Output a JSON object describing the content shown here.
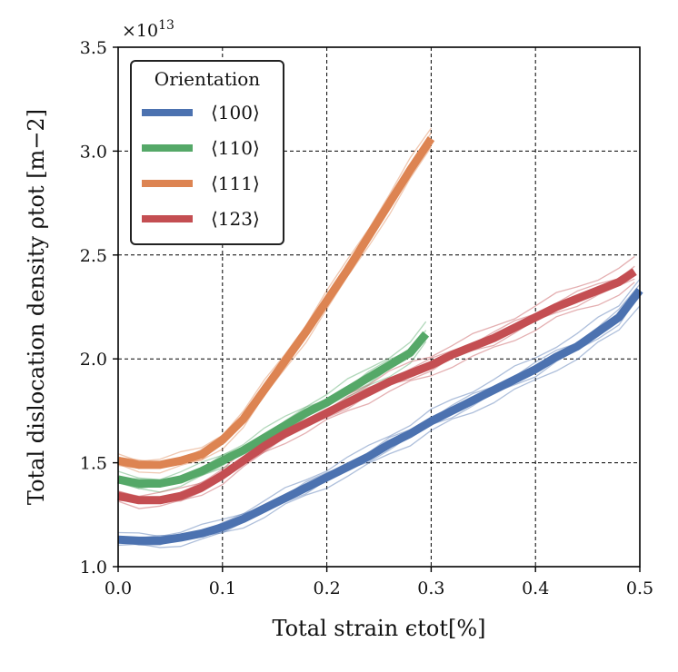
{
  "chart_data": {
    "type": "line",
    "xlabel": "Total strain ϵtot[%]",
    "ylabel": "Total dislocation density ρtot [m−2]",
    "y_multiplier": "×10",
    "y_multiplier_exp": "13",
    "xlim": [
      0.0,
      0.5
    ],
    "ylim": [
      1.0,
      3.5
    ],
    "x_ticks": [
      "0.0",
      "0.1",
      "0.2",
      "0.3",
      "0.4",
      "0.5"
    ],
    "y_ticks": [
      "1.0",
      "1.5",
      "2.0",
      "2.5",
      "3.0",
      "3.5"
    ],
    "grid": true,
    "legend": {
      "title": "Orientation",
      "position": "top-left",
      "entries": [
        "⟨100⟩",
        "⟨110⟩",
        "⟨111⟩",
        "⟨123⟩"
      ]
    },
    "series": [
      {
        "name": "⟨100⟩",
        "color": "#4C72B0",
        "x": [
          0.0,
          0.02,
          0.04,
          0.06,
          0.08,
          0.1,
          0.12,
          0.14,
          0.16,
          0.18,
          0.2,
          0.22,
          0.24,
          0.26,
          0.28,
          0.3,
          0.32,
          0.34,
          0.36,
          0.38,
          0.4,
          0.42,
          0.44,
          0.46,
          0.48,
          0.5
        ],
        "y": [
          1.13,
          1.125,
          1.125,
          1.14,
          1.16,
          1.19,
          1.23,
          1.28,
          1.33,
          1.38,
          1.43,
          1.48,
          1.53,
          1.59,
          1.64,
          1.7,
          1.75,
          1.8,
          1.85,
          1.9,
          1.95,
          2.01,
          2.06,
          2.13,
          2.2,
          2.33
        ]
      },
      {
        "name": "⟨110⟩",
        "color": "#55A868",
        "x": [
          0.0,
          0.02,
          0.04,
          0.06,
          0.08,
          0.1,
          0.12,
          0.14,
          0.16,
          0.18,
          0.2,
          0.22,
          0.24,
          0.26,
          0.28,
          0.295
        ],
        "y": [
          1.42,
          1.4,
          1.4,
          1.42,
          1.46,
          1.51,
          1.56,
          1.62,
          1.68,
          1.74,
          1.79,
          1.85,
          1.91,
          1.97,
          2.03,
          2.12
        ]
      },
      {
        "name": "⟨111⟩",
        "color": "#DD8452",
        "x": [
          0.0,
          0.02,
          0.04,
          0.06,
          0.08,
          0.1,
          0.12,
          0.14,
          0.16,
          0.18,
          0.2,
          0.22,
          0.24,
          0.26,
          0.28,
          0.3
        ],
        "y": [
          1.51,
          1.49,
          1.49,
          1.51,
          1.54,
          1.61,
          1.71,
          1.85,
          1.99,
          2.13,
          2.28,
          2.43,
          2.59,
          2.75,
          2.91,
          3.06
        ]
      },
      {
        "name": "⟨123⟩",
        "color": "#C44E52",
        "x": [
          0.0,
          0.02,
          0.04,
          0.06,
          0.08,
          0.1,
          0.12,
          0.14,
          0.16,
          0.18,
          0.2,
          0.22,
          0.24,
          0.26,
          0.28,
          0.3,
          0.32,
          0.34,
          0.36,
          0.38,
          0.4,
          0.42,
          0.44,
          0.46,
          0.48,
          0.495
        ],
        "y": [
          1.34,
          1.32,
          1.32,
          1.34,
          1.38,
          1.44,
          1.51,
          1.58,
          1.64,
          1.69,
          1.74,
          1.79,
          1.84,
          1.89,
          1.93,
          1.97,
          2.02,
          2.06,
          2.1,
          2.15,
          2.2,
          2.25,
          2.29,
          2.33,
          2.37,
          2.42
        ]
      }
    ]
  }
}
